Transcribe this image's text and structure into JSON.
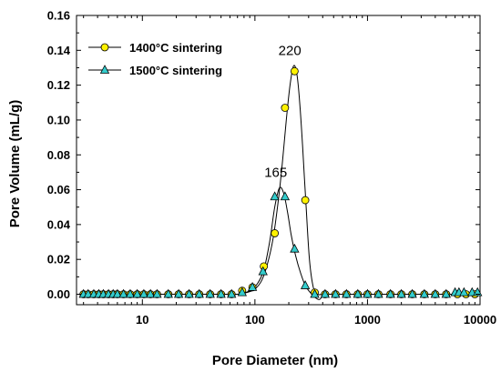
{
  "chart_data": {
    "type": "scatter",
    "xlabel": "Pore Diameter (nm)",
    "ylabel": "Pore Volume (mL/g)",
    "xscale": "log",
    "xlim": [
      2.6,
      10000
    ],
    "ylim": [
      -0.006,
      0.16
    ],
    "x_tick_labels": [
      "10",
      "100",
      "1000",
      "10000"
    ],
    "y_tick_labels": [
      "0.00",
      "0.02",
      "0.04",
      "0.06",
      "0.08",
      "0.10",
      "0.12",
      "0.14",
      "0.16"
    ],
    "grid": false,
    "legend_position": "top-left",
    "annotations": [
      {
        "text": "220",
        "x": 220,
        "y": 0.132
      },
      {
        "text": "165",
        "x": 165,
        "y": 0.062
      }
    ],
    "series": [
      {
        "name": "1400°C sintering",
        "marker": "circle",
        "color": "#FFF200",
        "x": [
          3,
          3.3,
          3.7,
          4.1,
          4.5,
          5,
          5.5,
          6,
          6.8,
          7.8,
          9,
          10.3,
          11.8,
          13.5,
          17,
          21,
          26,
          32,
          40,
          50,
          62,
          77,
          95,
          120,
          150,
          185,
          225,
          280,
          340,
          420,
          520,
          650,
          820,
          1000,
          1250,
          1600,
          2000,
          2500,
          3200,
          4000,
          5000,
          6300,
          7500,
          9000
        ],
        "y": [
          0,
          0,
          0,
          0,
          0,
          0,
          0,
          0,
          0,
          0,
          0,
          0,
          0,
          0,
          0,
          0,
          0,
          0,
          0,
          0,
          0,
          0.002,
          0.004,
          0.016,
          0.035,
          0.107,
          0.128,
          0.054,
          0.001,
          0,
          0,
          0,
          0,
          0,
          0,
          0,
          0,
          0,
          0,
          0,
          0,
          0,
          0,
          0
        ],
        "curve_x": [
          3,
          20,
          50,
          70,
          85,
          100,
          115,
          130,
          145,
          160,
          175,
          190,
          205,
          220,
          235,
          250,
          265,
          285,
          305,
          330,
          360,
          400,
          500,
          1000,
          10000
        ],
        "curve_y": [
          0,
          0,
          0,
          0,
          0.001,
          0.003,
          0.008,
          0.018,
          0.032,
          0.052,
          0.075,
          0.1,
          0.12,
          0.131,
          0.127,
          0.11,
          0.085,
          0.05,
          0.02,
          0.004,
          0,
          0,
          0,
          0,
          0
        ]
      },
      {
        "name": "1500°C sintering",
        "marker": "triangle",
        "color": "#33CCCC",
        "x": [
          3,
          3.3,
          3.7,
          4.1,
          4.5,
          5,
          5.5,
          6,
          6.8,
          7.8,
          9,
          10.3,
          11.8,
          13.5,
          17,
          21,
          26,
          32,
          40,
          50,
          62,
          77,
          95,
          118,
          150,
          185,
          225,
          280,
          340,
          420,
          520,
          650,
          820,
          1000,
          1250,
          1600,
          2000,
          2500,
          3200,
          4000,
          5000,
          6000,
          6500,
          7200,
          8500,
          9500
        ],
        "y": [
          0,
          0,
          0,
          0,
          0,
          0,
          0,
          0,
          0,
          0,
          0,
          0,
          0,
          0,
          0,
          0,
          0,
          0,
          0,
          0,
          0,
          0.001,
          0.004,
          0.013,
          0.056,
          0.056,
          0.026,
          0.005,
          0,
          0,
          0,
          0,
          0,
          0,
          0,
          0,
          0,
          0,
          0,
          0,
          0,
          0.001,
          0.001,
          0.001,
          0.001,
          0.001
        ],
        "curve_x": [
          3,
          20,
          50,
          70,
          90,
          105,
          120,
          135,
          150,
          165,
          180,
          195,
          210,
          230,
          255,
          280,
          310,
          345,
          375,
          400,
          450,
          600,
          1000,
          10000
        ],
        "curve_y": [
          0,
          0,
          0,
          0,
          0.002,
          0.006,
          0.014,
          0.03,
          0.05,
          0.061,
          0.058,
          0.047,
          0.034,
          0.022,
          0.012,
          0.005,
          0.001,
          -0.002,
          -0.003,
          -0.001,
          0,
          0,
          0,
          0
        ]
      }
    ]
  }
}
